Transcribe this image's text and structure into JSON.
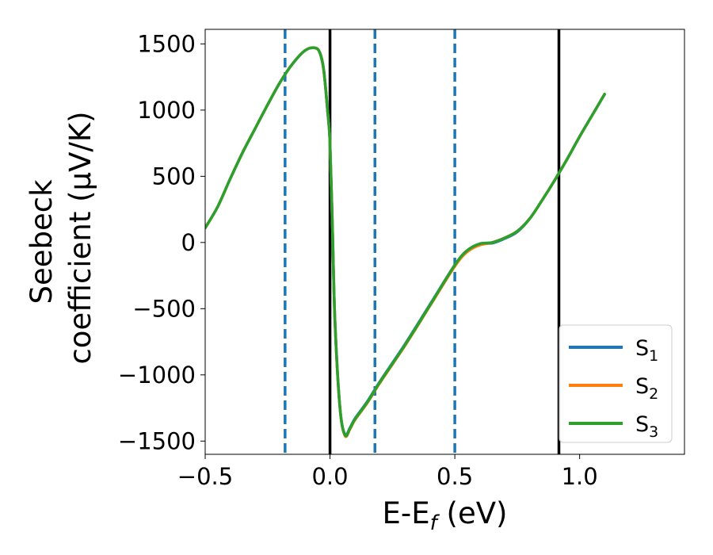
{
  "chart_data": {
    "type": "line",
    "xlabel": "E-E",
    "xlabel_sub": "f",
    "xlabel_unit": " (eV)",
    "ylabel_line1": "Seebeck",
    "ylabel_line2": "coefficient  (μV/K)",
    "xlim": [
      -0.5,
      1.42
    ],
    "ylim": [
      -1600,
      1610
    ],
    "xticks": [
      -0.5,
      0.0,
      0.5,
      1.0
    ],
    "xtick_labels": [
      "−0.5",
      "0.0",
      "0.5",
      "1.0"
    ],
    "yticks": [
      -1500,
      -1000,
      -500,
      0,
      500,
      1000,
      1500
    ],
    "ytick_labels": [
      "−1500",
      "−1000",
      "−500",
      "0",
      "500",
      "1000",
      "1500"
    ],
    "vlines_solid": [
      0.0,
      0.917
    ],
    "vlines_dashed": [
      -0.18,
      0.18,
      0.5
    ],
    "legend_position": "lower right",
    "grid": false,
    "colors": {
      "S1": "#1f77b4",
      "S2": "#ff7f0e",
      "S3": "#2ca02c",
      "vline_solid": "#000000",
      "vline_dashed": "#1f77b4"
    },
    "series": [
      {
        "name": "S",
        "sub": "1",
        "color": "#1f77b4",
        "x": [
          -0.5,
          -0.45,
          -0.4,
          -0.35,
          -0.3,
          -0.25,
          -0.2,
          -0.15,
          -0.1,
          -0.06,
          -0.04,
          -0.025,
          -0.01,
          0.0,
          0.01,
          0.02,
          0.04,
          0.06,
          0.08,
          0.1,
          0.15,
          0.2,
          0.3,
          0.4,
          0.5,
          0.55,
          0.6,
          0.65,
          0.7,
          0.75,
          0.8,
          0.85,
          0.9,
          0.95,
          1.0,
          1.05,
          1.1
        ],
        "y": [
          110,
          270,
          480,
          680,
          860,
          1040,
          1210,
          1350,
          1450,
          1470,
          1430,
          1300,
          1000,
          750,
          100,
          -600,
          -1250,
          -1450,
          -1400,
          -1330,
          -1200,
          -1050,
          -770,
          -470,
          -170,
          -60,
          -10,
          -5,
          30,
          80,
          180,
          320,
          470,
          630,
          800,
          960,
          1120
        ]
      },
      {
        "name": "S",
        "sub": "2",
        "color": "#ff7f0e",
        "x": [
          -0.5,
          -0.45,
          -0.4,
          -0.35,
          -0.3,
          -0.25,
          -0.2,
          -0.15,
          -0.1,
          -0.06,
          -0.04,
          -0.025,
          -0.01,
          0.0,
          0.01,
          0.02,
          0.04,
          0.06,
          0.08,
          0.1,
          0.15,
          0.2,
          0.3,
          0.4,
          0.5,
          0.55,
          0.6,
          0.65,
          0.7,
          0.75,
          0.8,
          0.85,
          0.9,
          0.95,
          1.0,
          1.05,
          1.1
        ],
        "y": [
          110,
          270,
          480,
          680,
          860,
          1040,
          1210,
          1350,
          1450,
          1470,
          1430,
          1300,
          1000,
          750,
          100,
          -600,
          -1250,
          -1460,
          -1410,
          -1340,
          -1210,
          -1060,
          -780,
          -480,
          -180,
          -70,
          -20,
          0,
          35,
          85,
          180,
          320,
          470,
          630,
          800,
          960,
          1120
        ]
      },
      {
        "name": "S",
        "sub": "3",
        "color": "#2ca02c",
        "x": [
          -0.5,
          -0.45,
          -0.4,
          -0.35,
          -0.3,
          -0.25,
          -0.2,
          -0.15,
          -0.1,
          -0.06,
          -0.04,
          -0.025,
          -0.01,
          0.0,
          0.01,
          0.02,
          0.04,
          0.06,
          0.08,
          0.1,
          0.15,
          0.2,
          0.3,
          0.4,
          0.5,
          0.55,
          0.6,
          0.65,
          0.7,
          0.75,
          0.8,
          0.85,
          0.9,
          0.95,
          1.0,
          1.05,
          1.1
        ],
        "y": [
          110,
          270,
          480,
          680,
          860,
          1040,
          1210,
          1350,
          1450,
          1470,
          1430,
          1300,
          1000,
          750,
          100,
          -600,
          -1250,
          -1455,
          -1405,
          -1335,
          -1205,
          -1055,
          -775,
          -475,
          -170,
          -60,
          -10,
          0,
          35,
          85,
          180,
          320,
          470,
          630,
          800,
          960,
          1120
        ]
      }
    ]
  }
}
